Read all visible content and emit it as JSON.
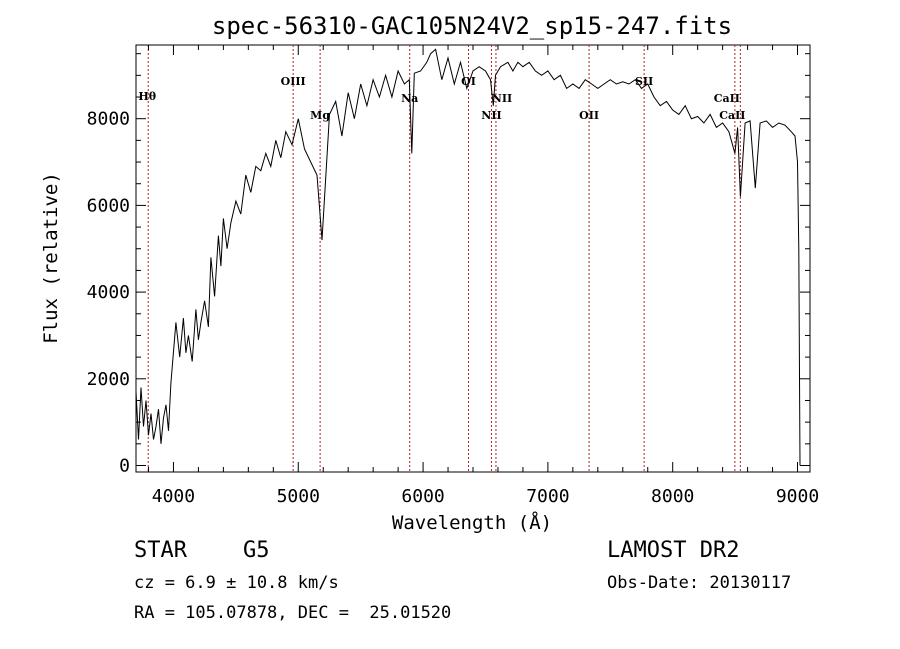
{
  "chart_data": {
    "type": "line",
    "title": "spec-56310-GAC105N24V2_sp15-247.fits",
    "xlabel": "Wavelength (Å)",
    "ylabel": "Flux (relative)",
    "xlim": [
      3700,
      9100
    ],
    "ylim": [
      -150,
      9700
    ],
    "xticks": [
      4000,
      5000,
      6000,
      7000,
      8000,
      9000
    ],
    "yticks": [
      0,
      2000,
      4000,
      6000,
      8000
    ],
    "series": [
      {
        "name": "flux",
        "x": [
          3700,
          3720,
          3740,
          3760,
          3780,
          3800,
          3820,
          3840,
          3860,
          3880,
          3900,
          3920,
          3940,
          3960,
          3980,
          4000,
          4020,
          4050,
          4080,
          4100,
          4120,
          4150,
          4180,
          4200,
          4220,
          4250,
          4280,
          4300,
          4330,
          4360,
          4380,
          4400,
          4430,
          4460,
          4500,
          4540,
          4580,
          4620,
          4660,
          4700,
          4740,
          4780,
          4820,
          4860,
          4900,
          4950,
          5000,
          5050,
          5100,
          5150,
          5190,
          5250,
          5300,
          5350,
          5400,
          5450,
          5500,
          5550,
          5600,
          5650,
          5700,
          5750,
          5800,
          5850,
          5890,
          5910,
          5930,
          5980,
          6030,
          6060,
          6100,
          6150,
          6200,
          6250,
          6300,
          6350,
          6400,
          6450,
          6500,
          6540,
          6563,
          6580,
          6620,
          6680,
          6720,
          6760,
          6800,
          6850,
          6900,
          6950,
          7000,
          7050,
          7100,
          7150,
          7200,
          7250,
          7300,
          7350,
          7400,
          7450,
          7500,
          7550,
          7600,
          7650,
          7700,
          7750,
          7800,
          7850,
          7900,
          7950,
          8000,
          8050,
          8100,
          8150,
          8200,
          8250,
          8300,
          8350,
          8400,
          8450,
          8498,
          8520,
          8542,
          8580,
          8620,
          8662,
          8700,
          8750,
          8800,
          8850,
          8900,
          8950,
          8980,
          9000,
          9010,
          9020
        ],
        "values": [
          1700,
          600,
          1800,
          900,
          1500,
          700,
          1200,
          600,
          900,
          1300,
          500,
          1100,
          1400,
          800,
          1900,
          2600,
          3300,
          2500,
          3400,
          2600,
          3000,
          2400,
          3600,
          2900,
          3300,
          3800,
          3200,
          4800,
          3900,
          5300,
          4600,
          5700,
          5000,
          5600,
          6100,
          5800,
          6700,
          6300,
          6900,
          6800,
          7200,
          6900,
          7500,
          7100,
          7700,
          7400,
          8000,
          7300,
          7000,
          6700,
          5200,
          8100,
          8400,
          7600,
          8600,
          8000,
          8800,
          8300,
          8900,
          8500,
          9000,
          8500,
          9100,
          8800,
          8900,
          7200,
          9050,
          9100,
          9300,
          9500,
          9600,
          8900,
          9400,
          8800,
          9300,
          8700,
          9100,
          9200,
          9100,
          8900,
          8300,
          9000,
          9200,
          9300,
          9100,
          9300,
          9200,
          9300,
          9100,
          9000,
          9100,
          8900,
          9000,
          8700,
          8800,
          8700,
          8900,
          8800,
          8700,
          8800,
          8900,
          8800,
          8850,
          8800,
          8900,
          8700,
          8800,
          8500,
          8300,
          8400,
          8200,
          8100,
          8300,
          8000,
          8050,
          7900,
          8100,
          7800,
          7900,
          7700,
          7200,
          7800,
          6200,
          7900,
          7950,
          6400,
          7900,
          7950,
          7800,
          7900,
          7850,
          7700,
          7600,
          7000,
          5000,
          0
        ]
      }
    ],
    "lines": [
      {
        "label": "Hθ",
        "x": 3798
      },
      {
        "label": "OIII",
        "x": 4959
      },
      {
        "label": "Mg",
        "x": 5175
      },
      {
        "label": "Na",
        "x": 5893
      },
      {
        "label": "OI",
        "x": 6364
      },
      {
        "label": "NII",
        "x": 6548
      },
      {
        "label": "NII",
        "x": 6584
      },
      {
        "label": "OII",
        "x": 7330
      },
      {
        "label": "SII",
        "x": 7771
      },
      {
        "label": "CaII",
        "x": 8498
      },
      {
        "label": "CaII",
        "x": 8542
      }
    ]
  },
  "info": {
    "class": "STAR",
    "subclass": "G5",
    "survey": "LAMOST DR2",
    "cz": "cz = 6.9 ± 10.8 km/s",
    "obs_date": "Obs-Date: 20130117",
    "coords": "RA = 105.07878, DEC =  25.01520"
  }
}
